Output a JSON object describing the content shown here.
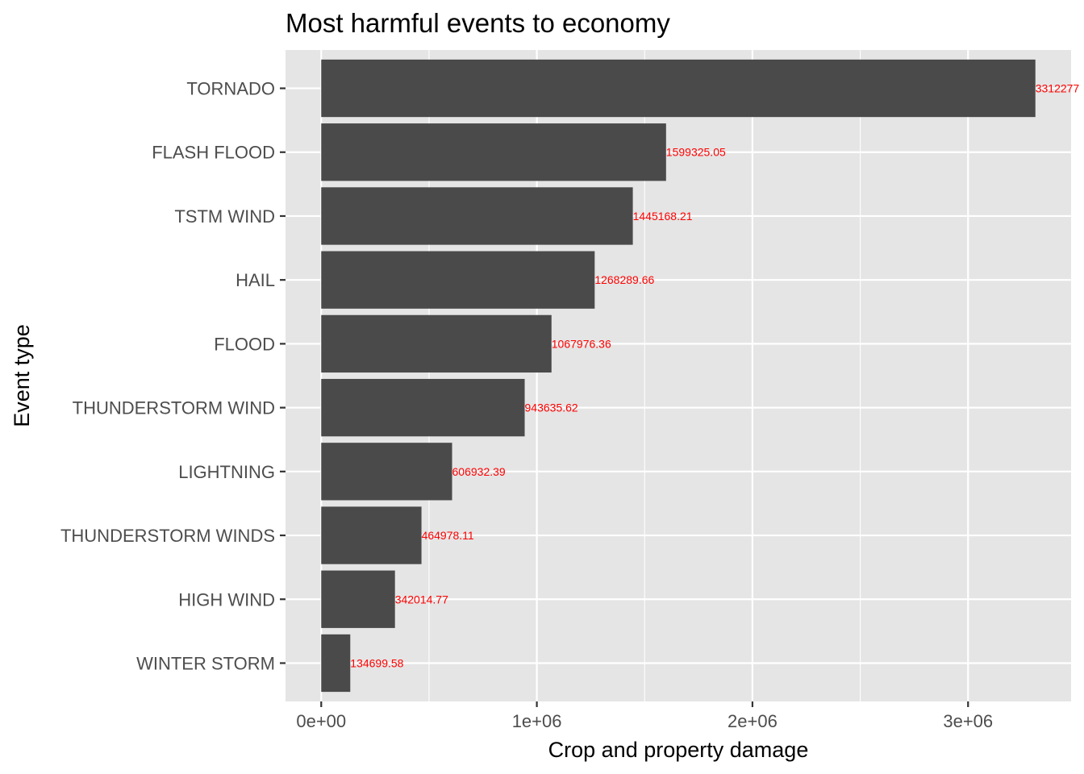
{
  "chart_data": {
    "type": "bar",
    "orientation": "horizontal",
    "title": "Most harmful events to economy",
    "xlabel": "Crop and property damage",
    "ylabel": "Event type",
    "categories": [
      "TORNADO",
      "FLASH FLOOD",
      "TSTM WIND",
      "HAIL",
      "FLOOD",
      "THUNDERSTORM WIND",
      "LIGHTNING",
      "THUNDERSTORM WINDS",
      "HIGH WIND",
      "WINTER STORM"
    ],
    "values": [
      3312277,
      1599325.05,
      1445168.21,
      1268289.66,
      1067976.36,
      943635.62,
      606932.39,
      464978.11,
      342014.77,
      134699.58
    ],
    "data_labels": [
      "3312277",
      "1599325.05",
      "1445168.21",
      "1268289.66",
      "1067976.36",
      "943635.62",
      "606932.39",
      "464978.11",
      "342014.77",
      "134699.58"
    ],
    "xticks": [
      0,
      1000000,
      2000000,
      3000000
    ],
    "xtick_labels": [
      "0e+00",
      "1e+06",
      "2e+06",
      "3e+06"
    ],
    "xlim": [
      -165614,
      3477891
    ],
    "grid": true,
    "colors": {
      "bar": "#4a4a4a",
      "panel": "#e5e5e5",
      "grid": "#ffffff",
      "data_label": "#ff0000"
    }
  }
}
